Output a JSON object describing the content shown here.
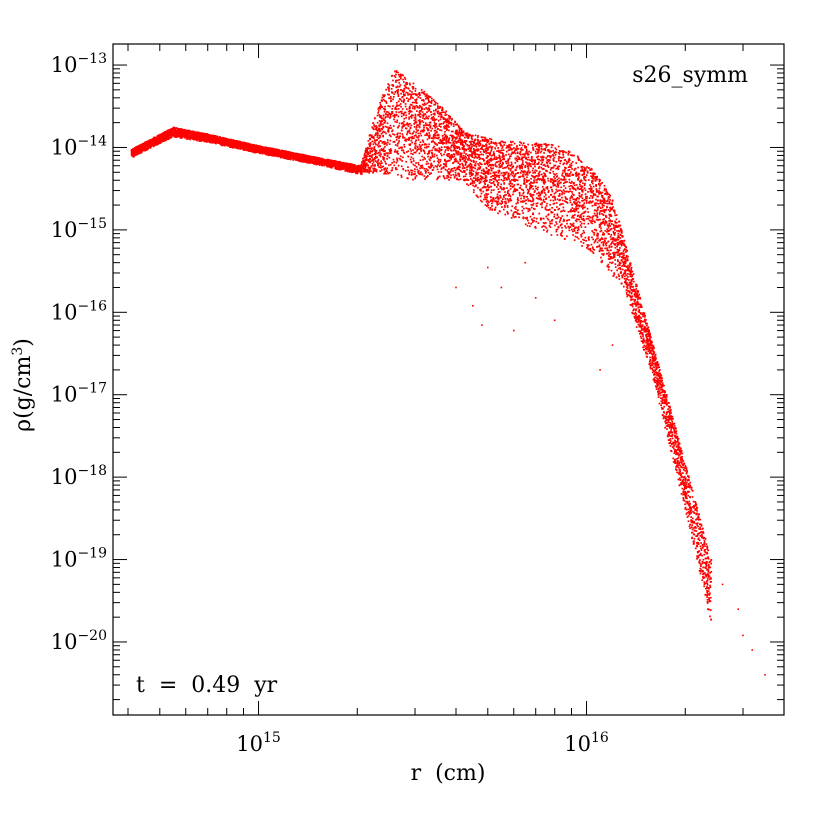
{
  "chart_data": {
    "type": "scatter",
    "title": "",
    "xlabel": "r  (cm)",
    "ylabel_parts": [
      "ρ(g/cm",
      "3",
      ")"
    ],
    "x_scale": "log",
    "y_scale": "log",
    "xlim": [
      360000000000000.0,
      4e+16
    ],
    "ylim": [
      1.3e-21,
      1.8e-13
    ],
    "x_major_ticks": [
      {
        "value": 1000000000000000.0,
        "base": "10",
        "exp": "15"
      },
      {
        "value": 1e+16,
        "base": "10",
        "exp": "16"
      }
    ],
    "y_major_ticks": [
      {
        "value": 1e-13,
        "base": "10",
        "exp": "−13"
      },
      {
        "value": 1e-14,
        "base": "10",
        "exp": "−14"
      },
      {
        "value": 1e-15,
        "base": "10",
        "exp": "−15"
      },
      {
        "value": 1e-16,
        "base": "10",
        "exp": "−16"
      },
      {
        "value": 1e-17,
        "base": "10",
        "exp": "−17"
      },
      {
        "value": 1e-18,
        "base": "10",
        "exp": "−18"
      },
      {
        "value": 1e-19,
        "base": "10",
        "exp": "−19"
      },
      {
        "value": 1e-20,
        "base": "10",
        "exp": "−20"
      }
    ],
    "grid": false,
    "marker_color": "#ff0000",
    "annotations": {
      "model_label": "s26_symm",
      "time_label": "t  =  0.49  yr"
    },
    "series": [
      {
        "upper_envelope": [
          {
            "x": 410000000000000.0,
            "y": 9.5e-15
          },
          {
            "x": 550000000000000.0,
            "y": 1.75e-14
          },
          {
            "x": 700000000000000.0,
            "y": 1.45e-14
          },
          {
            "x": 1000000000000000.0,
            "y": 1.05e-14
          },
          {
            "x": 1500000000000000.0,
            "y": 7.6e-15
          },
          {
            "x": 2050000000000000.0,
            "y": 6e-15
          },
          {
            "x": 2300000000000000.0,
            "y": 3e-14
          },
          {
            "x": 2600000000000000.0,
            "y": 9e-14
          },
          {
            "x": 3000000000000000.0,
            "y": 6e-14
          },
          {
            "x": 3600000000000000.0,
            "y": 3.2e-14
          },
          {
            "x": 4300000000000000.0,
            "y": 1.5e-14
          },
          {
            "x": 5500000000000000.0,
            "y": 1.2e-14
          },
          {
            "x": 8000000000000000.0,
            "y": 1.1e-14
          },
          {
            "x": 1e+16,
            "y": 7e-15
          },
          {
            "x": 1.2e+16,
            "y": 2.5e-15
          },
          {
            "x": 1.5e+16,
            "y": 1e-16
          },
          {
            "x": 2e+16,
            "y": 1.5e-18
          },
          {
            "x": 2.4e+16,
            "y": 1e-19
          }
        ],
        "lower_envelope": [
          {
            "x": 410000000000000.0,
            "y": 7.5e-15
          },
          {
            "x": 550000000000000.0,
            "y": 1.35e-14
          },
          {
            "x": 700000000000000.0,
            "y": 1.15e-14
          },
          {
            "x": 1000000000000000.0,
            "y": 8.5e-15
          },
          {
            "x": 1500000000000000.0,
            "y": 6.2e-15
          },
          {
            "x": 2050000000000000.0,
            "y": 4.7e-15
          },
          {
            "x": 2300000000000000.0,
            "y": 5e-15
          },
          {
            "x": 3000000000000000.0,
            "y": 4e-15
          },
          {
            "x": 4200000000000000.0,
            "y": 4e-15
          },
          {
            "x": 5000000000000000.0,
            "y": 1.8e-15
          },
          {
            "x": 7000000000000000.0,
            "y": 1e-15
          },
          {
            "x": 1e+16,
            "y": 6e-16
          },
          {
            "x": 1.3e+16,
            "y": 2e-16
          },
          {
            "x": 1.6e+16,
            "y": 1.5e-17
          },
          {
            "x": 2e+16,
            "y": 4e-19
          },
          {
            "x": 2.4e+16,
            "y": 1.5e-20
          }
        ],
        "outliers": [
          {
            "x": 4000000000000000.0,
            "y": 2e-16
          },
          {
            "x": 4500000000000000.0,
            "y": 1.2e-16
          },
          {
            "x": 5000000000000000.0,
            "y": 3.5e-16
          },
          {
            "x": 5500000000000000.0,
            "y": 2e-16
          },
          {
            "x": 6000000000000000.0,
            "y": 6e-17
          },
          {
            "x": 7000000000000000.0,
            "y": 1.5e-16
          },
          {
            "x": 8000000000000000.0,
            "y": 8e-17
          },
          {
            "x": 6500000000000000.0,
            "y": 4e-16
          },
          {
            "x": 4800000000000000.0,
            "y": 7e-17
          },
          {
            "x": 1.1e+16,
            "y": 2e-17
          },
          {
            "x": 1.2e+16,
            "y": 4e-17
          },
          {
            "x": 2.6e+16,
            "y": 5e-20
          },
          {
            "x": 2.9e+16,
            "y": 2.5e-20
          },
          {
            "x": 3.2e+16,
            "y": 8e-21
          },
          {
            "x": 3.5e+16,
            "y": 4e-21
          },
          {
            "x": 3e+16,
            "y": 1.2e-20
          }
        ]
      }
    ]
  }
}
